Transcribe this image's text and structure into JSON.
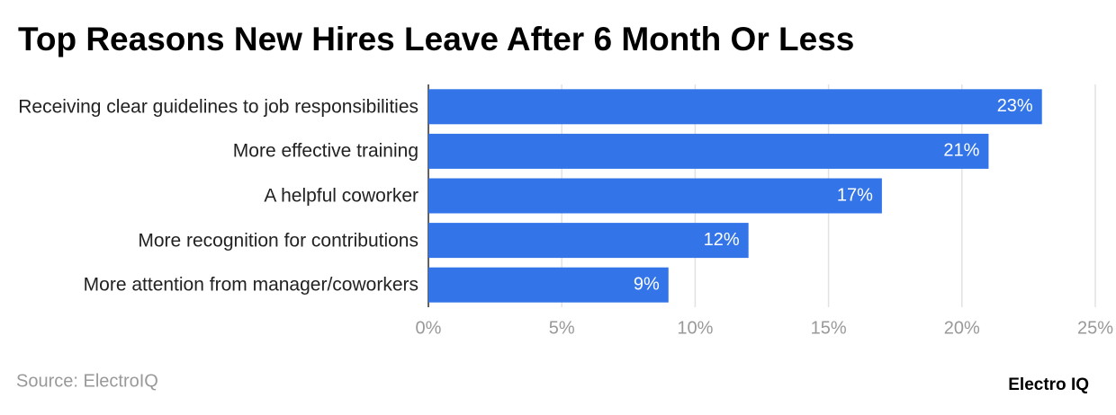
{
  "chart_data": {
    "type": "bar",
    "orientation": "horizontal",
    "title": "Top Reasons New Hires Leave After 6 Month Or Less",
    "categories": [
      "Receiving clear guidelines to job responsibilities",
      "More effective training",
      "A helpful coworker",
      "More recognition for contributions",
      "More attention from manager/coworkers"
    ],
    "values": [
      23,
      21,
      17,
      12,
      9
    ],
    "value_labels": [
      "23%",
      "21%",
      "17%",
      "12%",
      "9%"
    ],
    "color": "#3375e8",
    "xlim": [
      0,
      25
    ],
    "xticks": [
      {
        "value": 0,
        "label": "0%"
      },
      {
        "value": 5,
        "label": "5%"
      },
      {
        "value": 10,
        "label": "10%"
      },
      {
        "value": 15,
        "label": "15%"
      },
      {
        "value": 20,
        "label": "20%"
      },
      {
        "value": 25,
        "label": "25%"
      }
    ],
    "grid": true,
    "source": "Source: ElectroIQ",
    "brand": "Electro IQ"
  }
}
